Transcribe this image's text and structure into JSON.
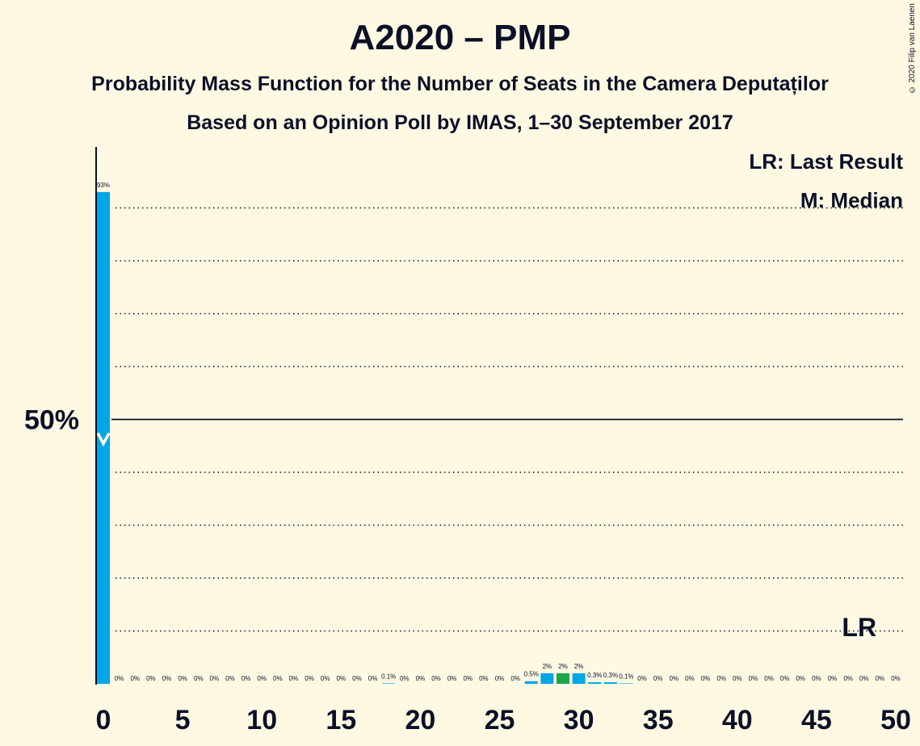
{
  "chart_data": {
    "type": "bar",
    "title": "A2020 – PMP",
    "subtitle": "Probability Mass Function for the Number of Seats in the Camera Deputaților",
    "subtitle2": "Based on an Opinion Poll by IMAS, 1–30 September 2017",
    "copyright": "© 2020 Filip van Laenen",
    "legend": [
      "LR: Last Result",
      "M: Median"
    ],
    "legend_position": "top-right",
    "x": [
      0,
      1,
      2,
      3,
      4,
      5,
      6,
      7,
      8,
      9,
      10,
      11,
      12,
      13,
      14,
      15,
      16,
      17,
      18,
      19,
      20,
      21,
      22,
      23,
      24,
      25,
      26,
      27,
      28,
      29,
      30,
      31,
      32,
      33,
      34,
      35,
      36,
      37,
      38,
      39,
      40,
      41,
      42,
      43,
      44,
      45,
      46,
      47,
      48,
      49,
      50
    ],
    "values": [
      93,
      0,
      0,
      0,
      0,
      0,
      0,
      0,
      0,
      0,
      0,
      0,
      0,
      0,
      0,
      0,
      0,
      0,
      0.1,
      0,
      0,
      0,
      0,
      0,
      0,
      0,
      0,
      0.5,
      2,
      2,
      2,
      0.3,
      0.3,
      0.1,
      0,
      0,
      0,
      0,
      0,
      0,
      0,
      0,
      0,
      0,
      0,
      0,
      0,
      0,
      0,
      0,
      0
    ],
    "labels": [
      "93%",
      "0%",
      "0%",
      "0%",
      "0%",
      "0%",
      "0%",
      "0%",
      "0%",
      "0%",
      "0%",
      "0%",
      "0%",
      "0%",
      "0%",
      "0%",
      "0%",
      "0%",
      "0.1%",
      "0%",
      "0%",
      "0%",
      "0%",
      "0%",
      "0%",
      "0%",
      "0%",
      "0.5%",
      "2%",
      "2%",
      "2%",
      "0.3%",
      "0.3%",
      "0.1%",
      "0%",
      "0%",
      "0%",
      "0%",
      "0%",
      "0%",
      "0%",
      "0%",
      "0%",
      "0%",
      "0%",
      "0%",
      "0%",
      "0%",
      "0%",
      "0%",
      "0%"
    ],
    "highlight_green": [
      29
    ],
    "median_seat": 0,
    "last_result_seat": 48,
    "last_result_label": "LR",
    "xlim": [
      0,
      50
    ],
    "ylim": [
      0,
      100
    ],
    "x_ticks": [
      0,
      5,
      10,
      15,
      20,
      25,
      30,
      35,
      40,
      45,
      50
    ],
    "y_tick_label": "50%",
    "y_tick_value": 50,
    "gridlines": [
      10,
      20,
      30,
      40,
      60,
      70,
      80,
      90
    ],
    "colors": {
      "bar": "#00a6e8",
      "bar_highlight": "#1fa64a",
      "background": "#fff9e3",
      "text": "#0b1027"
    }
  }
}
